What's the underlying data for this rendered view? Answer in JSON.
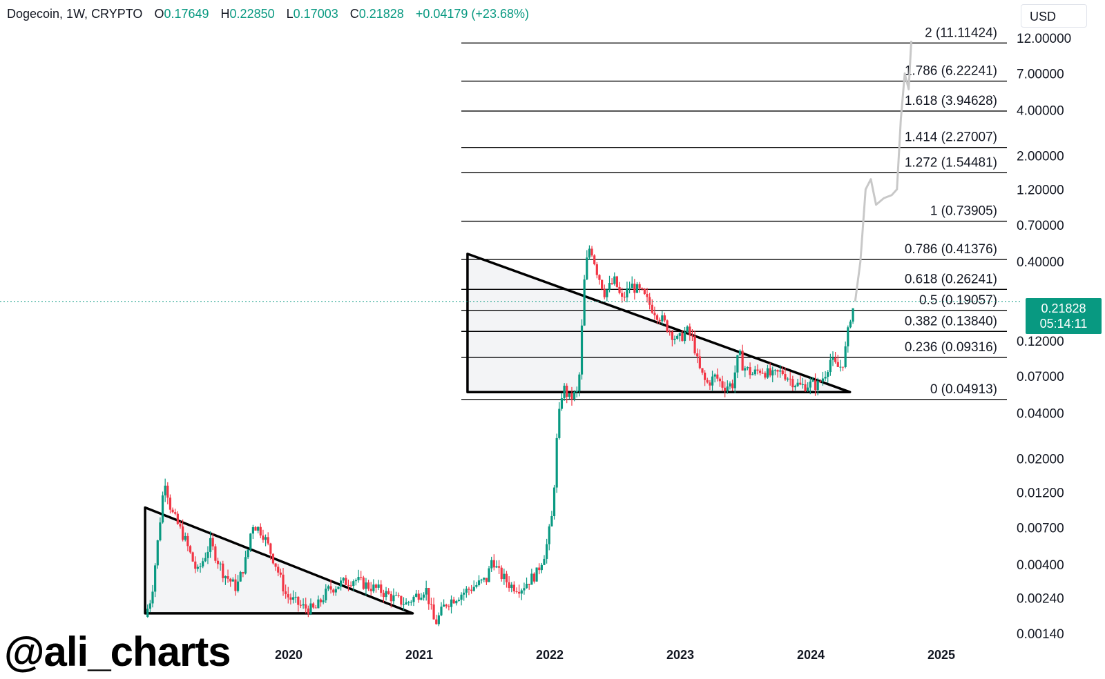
{
  "header": {
    "symbol": "Dogecoin, 1W, CRYPTO",
    "open_label": "O",
    "open": "0.17649",
    "high_label": "H",
    "high": "0.22850",
    "low_label": "L",
    "low": "0.17003",
    "close_label": "C",
    "close": "0.21828",
    "change": "+0.04179 (+23.68%)"
  },
  "currency": "USD",
  "price_tag": {
    "price": "0.21828",
    "countdown": "05:14:11"
  },
  "watermark": "@ali_charts",
  "colors": {
    "up": "#089981",
    "down": "#f23645",
    "projection": "#c8c8c8",
    "line": "#000000"
  },
  "chart_data": {
    "type": "candlestick",
    "scale": "log",
    "x_ticks": [
      "2020",
      "2021",
      "2022",
      "2023",
      "2024",
      "2025"
    ],
    "y_ticks": [
      "12.00000",
      "7.00000",
      "4.00000",
      "2.00000",
      "1.20000",
      "0.70000",
      "0.40000",
      "0.12000",
      "0.07000",
      "0.04000",
      "0.02000",
      "0.01200",
      "0.00700",
      "0.00400",
      "0.00240",
      "0.00140"
    ],
    "ylim": [
      0.0013,
      14
    ],
    "fib_levels": [
      {
        "ratio": "2",
        "price": 11.11424,
        "label": "2 (11.11424)"
      },
      {
        "ratio": "1.786",
        "price": 6.22241,
        "label": "1.786 (6.22241)"
      },
      {
        "ratio": "1.618",
        "price": 3.94628,
        "label": "1.618 (3.94628)"
      },
      {
        "ratio": "1.414",
        "price": 2.27007,
        "label": "1.414 (2.27007)"
      },
      {
        "ratio": "1.272",
        "price": 1.54481,
        "label": "1.272 (1.54481)"
      },
      {
        "ratio": "1",
        "price": 0.73905,
        "label": "1 (0.73905)"
      },
      {
        "ratio": "0.786",
        "price": 0.41376,
        "label": "0.786 (0.41376)"
      },
      {
        "ratio": "0.618",
        "price": 0.26241,
        "label": "0.618 (0.26241)"
      },
      {
        "ratio": "0.5",
        "price": 0.19057,
        "label": "0.5 (0.19057)"
      },
      {
        "ratio": "0.382",
        "price": 0.1384,
        "label": "0.382 (0.13840)"
      },
      {
        "ratio": "0.236",
        "price": 0.09316,
        "label": "0.236 (0.09316)"
      },
      {
        "ratio": "0",
        "price": 0.04913,
        "label": "0 (0.04913)"
      }
    ],
    "current_price": 0.21828,
    "triangles": [
      {
        "name": "descending-triangle-2018-2020",
        "top_start": {
          "t": 2018.9,
          "p": 0.0095
        },
        "end": {
          "t": 2020.95,
          "p": 0.0019
        },
        "base_start": {
          "t": 2018.9,
          "p": 0.0019
        }
      },
      {
        "name": "descending-triangle-2021-2024",
        "top_start": {
          "t": 2021.37,
          "p": 0.45
        },
        "end": {
          "t": 2024.3,
          "p": 0.055
        },
        "base_start": {
          "t": 2021.37,
          "p": 0.055
        }
      }
    ],
    "price_path": [
      [
        2018.9,
        0.0018
      ],
      [
        2018.95,
        0.0025
      ],
      [
        2019.0,
        0.006
      ],
      [
        2019.05,
        0.015
      ],
      [
        2019.1,
        0.009
      ],
      [
        2019.2,
        0.006
      ],
      [
        2019.3,
        0.0035
      ],
      [
        2019.4,
        0.0055
      ],
      [
        2019.5,
        0.0035
      ],
      [
        2019.6,
        0.0028
      ],
      [
        2019.68,
        0.0045
      ],
      [
        2019.72,
        0.0075
      ],
      [
        2019.8,
        0.0065
      ],
      [
        2019.9,
        0.004
      ],
      [
        2019.98,
        0.0025
      ],
      [
        2020.1,
        0.0021
      ],
      [
        2020.2,
        0.002
      ],
      [
        2020.3,
        0.0027
      ],
      [
        2020.4,
        0.003
      ],
      [
        2020.5,
        0.0032
      ],
      [
        2020.6,
        0.0029
      ],
      [
        2020.7,
        0.0027
      ],
      [
        2020.8,
        0.0024
      ],
      [
        2020.9,
        0.0022
      ],
      [
        2021.05,
        0.0028
      ],
      [
        2021.12,
        0.0016
      ],
      [
        2021.2,
        0.0022
      ],
      [
        2021.3,
        0.0025
      ],
      [
        2021.4,
        0.0028
      ],
      [
        2021.52,
        0.0032
      ],
      [
        2021.56,
        0.0045
      ],
      [
        2021.6,
        0.0036
      ],
      [
        2021.7,
        0.0029
      ],
      [
        2021.78,
        0.0028
      ],
      [
        2021.9,
        0.0035
      ],
      [
        2021.97,
        0.005
      ],
      [
        2022.02,
        0.0085
      ],
      [
        2022.06,
        0.032
      ],
      [
        2022.1,
        0.06
      ],
      [
        2022.15,
        0.05
      ],
      [
        2022.22,
        0.055
      ],
      [
        2022.27,
        0.35
      ],
      [
        2022.31,
        0.52
      ],
      [
        2022.36,
        0.35
      ],
      [
        2022.42,
        0.25
      ],
      [
        2022.5,
        0.3
      ],
      [
        2022.55,
        0.22
      ],
      [
        2022.62,
        0.28
      ],
      [
        2022.7,
        0.25
      ],
      [
        2022.78,
        0.2
      ],
      [
        2022.85,
        0.17
      ],
      [
        2022.92,
        0.14
      ],
      [
        2022.98,
        0.12
      ],
      [
        2023.05,
        0.14
      ],
      [
        2023.1,
        0.12
      ],
      [
        2023.14,
        0.08
      ],
      [
        2023.2,
        0.062
      ],
      [
        2023.27,
        0.07
      ],
      [
        2023.33,
        0.06
      ],
      [
        2023.4,
        0.062
      ],
      [
        2023.45,
        0.1
      ],
      [
        2023.48,
        0.082
      ],
      [
        2023.55,
        0.072
      ],
      [
        2023.62,
        0.078
      ],
      [
        2023.7,
        0.07
      ],
      [
        2023.78,
        0.075
      ],
      [
        2023.85,
        0.066
      ],
      [
        2023.92,
        0.06
      ],
      [
        2023.99,
        0.062
      ],
      [
        2024.05,
        0.061
      ],
      [
        2024.1,
        0.07
      ],
      [
        2024.15,
        0.09
      ],
      [
        2024.2,
        0.08
      ],
      [
        2024.24,
        0.082
      ],
      [
        2024.27,
        0.11
      ],
      [
        2024.3,
        0.17
      ],
      [
        2024.34,
        0.21828
      ]
    ],
    "projection_path": [
      [
        2024.34,
        0.21828
      ],
      [
        2024.38,
        0.4
      ],
      [
        2024.42,
        1.2
      ],
      [
        2024.46,
        1.4
      ],
      [
        2024.5,
        0.95
      ],
      [
        2024.56,
        1.05
      ],
      [
        2024.62,
        1.1
      ],
      [
        2024.66,
        1.2
      ],
      [
        2024.69,
        3.5
      ],
      [
        2024.72,
        7.0
      ],
      [
        2024.75,
        5.5
      ],
      [
        2024.77,
        11.5
      ]
    ]
  }
}
